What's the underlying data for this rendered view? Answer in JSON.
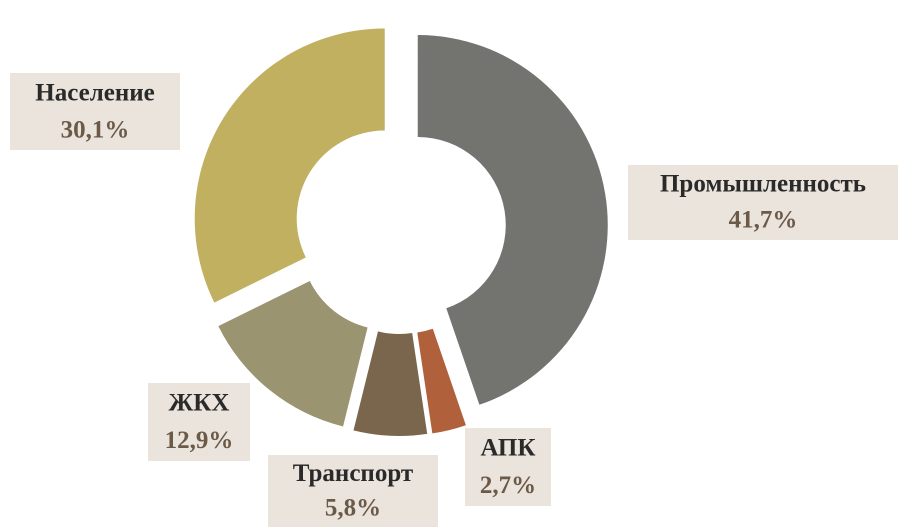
{
  "chart_data": {
    "type": "donut",
    "categories": [
      "Промышленность",
      "АПК",
      "Транспорт",
      "ЖКХ",
      "Население"
    ],
    "values": [
      41.7,
      2.7,
      5.8,
      12.9,
      30.1
    ],
    "value_labels": [
      "41,7%",
      "2,7%",
      "5,8%",
      "12,9%",
      "30,1%"
    ],
    "colors": [
      "#737470",
      "#b0603a",
      "#7a664d",
      "#9b9470",
      "#c0b060"
    ]
  }
}
